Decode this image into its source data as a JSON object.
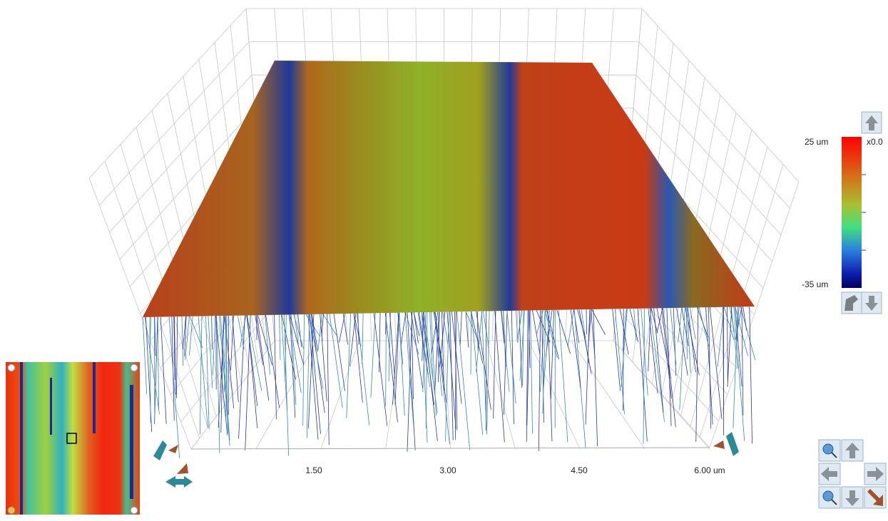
{
  "viewer": {
    "x_axis_labels": [
      "1.50",
      "3.00",
      "4.50",
      "6.00 um"
    ]
  },
  "color_scale": {
    "max_label": "25 um",
    "min_label": "-35 um",
    "zoom_label": "x0.0"
  }
}
